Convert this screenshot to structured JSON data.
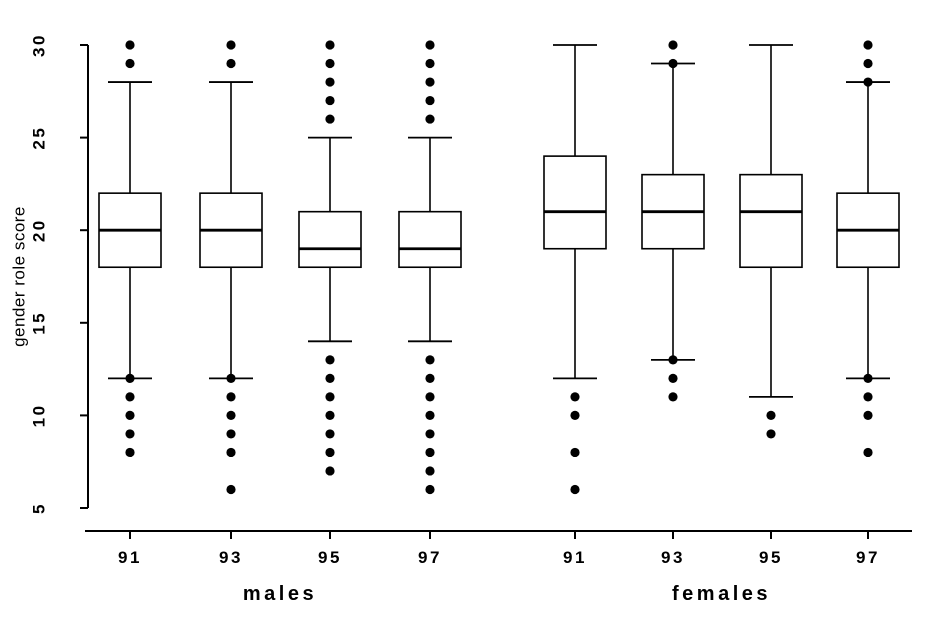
{
  "colors": {
    "stroke": "#000000",
    "background": "#ffffff",
    "box_fill": "#ffffff"
  },
  "chart_data": {
    "type": "boxplot",
    "title": "",
    "xlabel": "",
    "ylabel": "gender role score",
    "ylim": [
      5,
      30
    ],
    "yticks": [
      5,
      10,
      15,
      20,
      25,
      30
    ],
    "grid": false,
    "legend": false,
    "groups": [
      {
        "label": "males",
        "boxes": [
          {
            "x_label": "91",
            "q1": 18,
            "median": 20,
            "q3": 22,
            "whisker_low": 12,
            "whisker_high": 28,
            "outliers_low": [
              8,
              9,
              10,
              11,
              12
            ],
            "outliers_high": [
              29,
              30
            ]
          },
          {
            "x_label": "93",
            "q1": 18,
            "median": 20,
            "q3": 22,
            "whisker_low": 12,
            "whisker_high": 28,
            "outliers_low": [
              6,
              8,
              9,
              10,
              11,
              12
            ],
            "outliers_high": [
              29,
              30
            ]
          },
          {
            "x_label": "95",
            "q1": 18,
            "median": 19,
            "q3": 21,
            "whisker_low": 14,
            "whisker_high": 25,
            "outliers_low": [
              7,
              8,
              9,
              10,
              11,
              12,
              13
            ],
            "outliers_high": [
              26,
              27,
              28,
              29,
              30
            ]
          },
          {
            "x_label": "97",
            "q1": 18,
            "median": 19,
            "q3": 21,
            "whisker_low": 14,
            "whisker_high": 25,
            "outliers_low": [
              6,
              7,
              8,
              9,
              10,
              11,
              12,
              13
            ],
            "outliers_high": [
              26,
              27,
              28,
              29,
              30
            ]
          }
        ]
      },
      {
        "label": "females",
        "boxes": [
          {
            "x_label": "91",
            "q1": 19,
            "median": 21,
            "q3": 24,
            "whisker_low": 12,
            "whisker_high": 30,
            "outliers_low": [
              6,
              8,
              10,
              11
            ],
            "outliers_high": []
          },
          {
            "x_label": "93",
            "q1": 19,
            "median": 21,
            "q3": 23,
            "whisker_low": 13,
            "whisker_high": 29,
            "outliers_low": [
              11,
              12,
              13
            ],
            "outliers_high": [
              29,
              30
            ]
          },
          {
            "x_label": "95",
            "q1": 18,
            "median": 21,
            "q3": 23,
            "whisker_low": 11,
            "whisker_high": 30,
            "outliers_low": [
              9,
              10
            ],
            "outliers_high": []
          },
          {
            "x_label": "97",
            "q1": 18,
            "median": 20,
            "q3": 22,
            "whisker_low": 12,
            "whisker_high": 28,
            "outliers_low": [
              8,
              10,
              11,
              12
            ],
            "outliers_high": [
              28,
              29,
              30
            ]
          }
        ]
      }
    ]
  }
}
